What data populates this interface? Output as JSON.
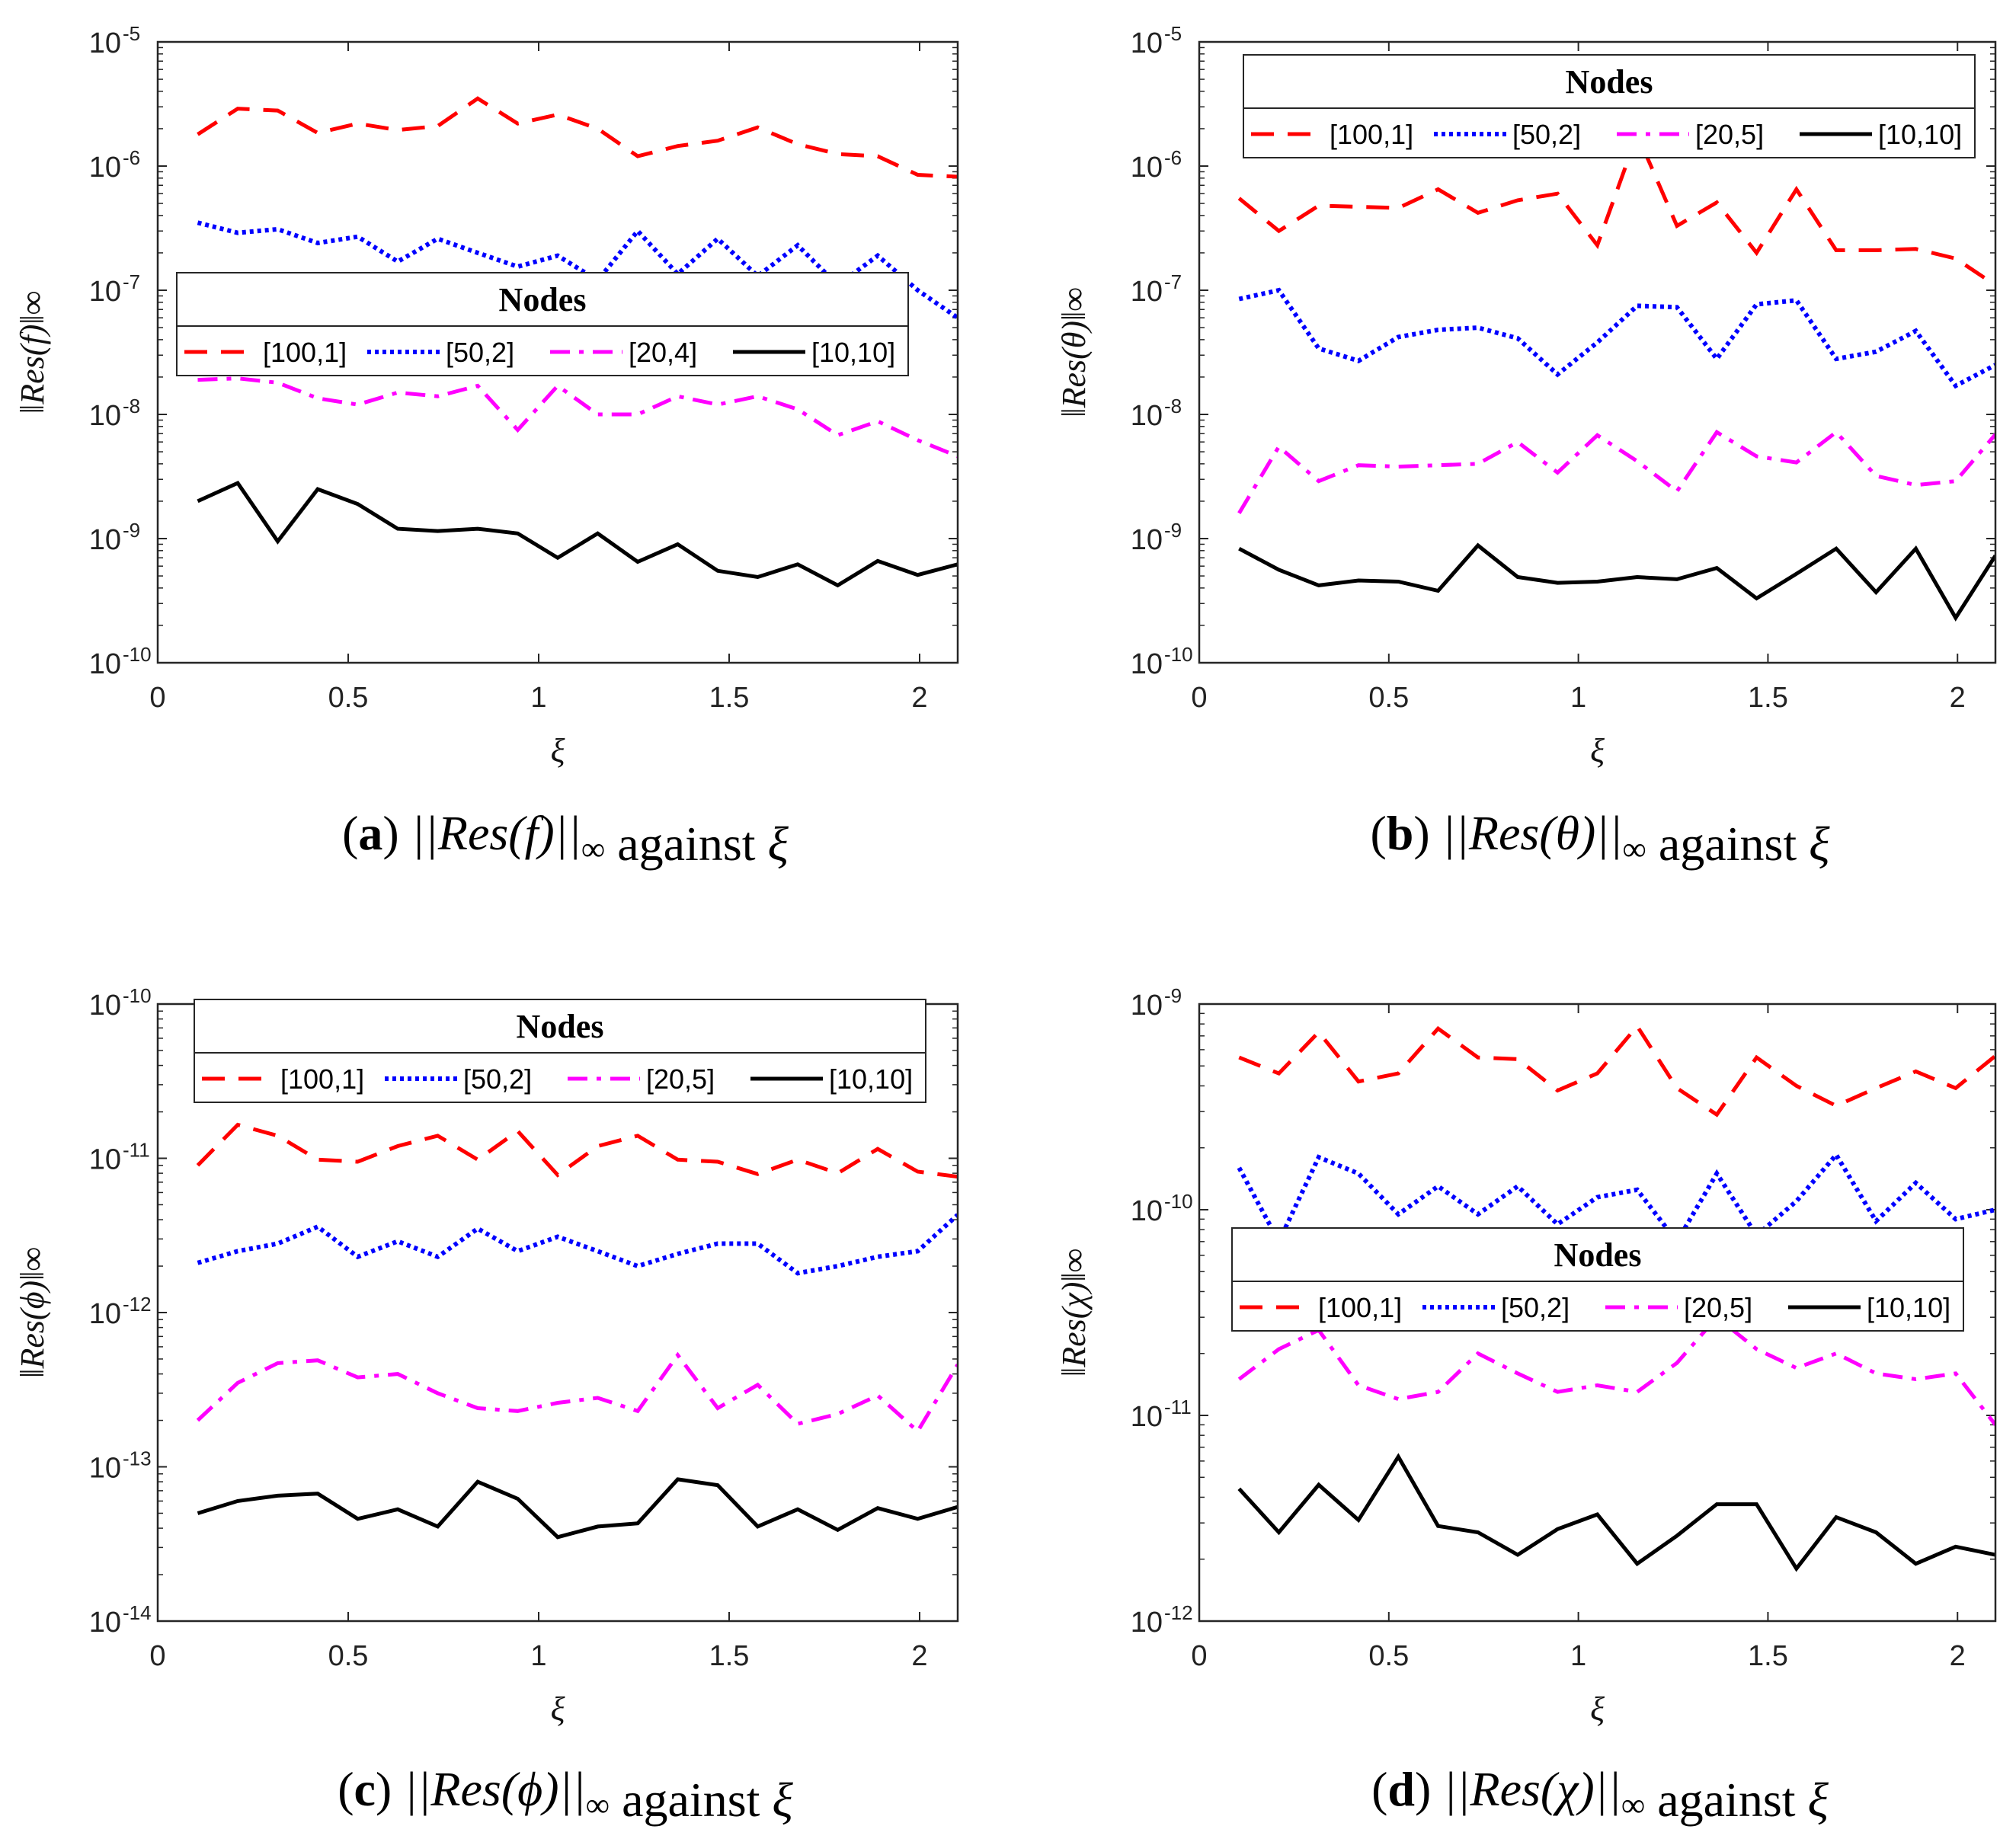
{
  "chart_data": [
    {
      "id": "a",
      "type": "line",
      "yscale": "log",
      "title": "",
      "xlabel": "ξ",
      "ylabel": "‖Res(f)‖∞",
      "xlim": [
        0,
        2.1
      ],
      "ylim_exp": [
        -10,
        -5
      ],
      "xticks": [
        "0",
        "0.5",
        "1",
        "1.5",
        "2"
      ],
      "ytick_base": "10",
      "ytick_exps": [
        "-10",
        "-9",
        "-8",
        "-7",
        "-6",
        "-5"
      ],
      "legend": {
        "title": "Nodes",
        "placement": "center-left"
      },
      "caption": {
        "letter": "a",
        "expr": "||Res(f)||",
        "sub": "∞",
        "rest": " against ",
        "var": "ξ"
      },
      "x": [
        0.105,
        0.21,
        0.315,
        0.42,
        0.525,
        0.63,
        0.735,
        0.84,
        0.945,
        1.05,
        1.155,
        1.26,
        1.365,
        1.47,
        1.575,
        1.68,
        1.785,
        1.89,
        1.995,
        2.1
      ],
      "series": [
        {
          "name": "[100,1]",
          "color": "#ff0000",
          "style": "dashed",
          "values": [
            1.8e-06,
            2.9e-06,
            2.8e-06,
            1.85e-06,
            2.2e-06,
            1.95e-06,
            2.1e-06,
            3.5e-06,
            2.2e-06,
            2.6e-06,
            2e-06,
            1.2e-06,
            1.45e-06,
            1.6e-06,
            2.05e-06,
            1.5e-06,
            1.25e-06,
            1.2e-06,
            8.5e-07,
            8.2e-07
          ]
        },
        {
          "name": "[50,2]",
          "color": "#0000ff",
          "style": "dotted",
          "values": [
            3.5e-07,
            2.9e-07,
            3.1e-07,
            2.4e-07,
            2.7e-07,
            1.7e-07,
            2.6e-07,
            2e-07,
            1.55e-07,
            1.9e-07,
            1.2e-07,
            3e-07,
            1.35e-07,
            2.6e-07,
            1.3e-07,
            2.3e-07,
            1.1e-07,
            1.9e-07,
            1e-07,
            6e-08
          ]
        },
        {
          "name": "[20,4]",
          "color": "#ff00ff",
          "style": "dashdot",
          "values": [
            1.9e-08,
            1.95e-08,
            1.8e-08,
            1.35e-08,
            1.2e-08,
            1.5e-08,
            1.4e-08,
            1.7e-08,
            7.5e-09,
            1.7e-08,
            1e-08,
            1e-08,
            1.4e-08,
            1.2e-08,
            1.4e-08,
            1.1e-08,
            6.8e-09,
            8.8e-09,
            6.2e-09,
            4.6e-09
          ]
        },
        {
          "name": "[10,10]",
          "color": "#000000",
          "style": "solid",
          "values": [
            2e-09,
            2.8e-09,
            9.5e-10,
            2.5e-09,
            1.9e-09,
            1.2e-09,
            1.15e-09,
            1.2e-09,
            1.1e-09,
            7e-10,
            1.1e-09,
            6.5e-10,
            9e-10,
            5.5e-10,
            4.9e-10,
            6.2e-10,
            4.2e-10,
            6.6e-10,
            5.1e-10,
            6.2e-10
          ]
        }
      ]
    },
    {
      "id": "b",
      "type": "line",
      "yscale": "log",
      "title": "",
      "xlabel": "ξ",
      "ylabel": "‖Res(θ)‖∞",
      "xlim": [
        0,
        2.1
      ],
      "ylim_exp": [
        -10,
        -5
      ],
      "xticks": [
        "0",
        "0.5",
        "1",
        "1.5",
        "2"
      ],
      "ytick_base": "10",
      "ytick_exps": [
        "-10",
        "-9",
        "-8",
        "-7",
        "-6",
        "-5"
      ],
      "legend": {
        "title": "Nodes",
        "placement": "top"
      },
      "caption": {
        "letter": "b",
        "expr": "||Res(θ)||",
        "sub": "∞",
        "rest": " against ",
        "var": "ξ"
      },
      "x": [
        0.105,
        0.21,
        0.315,
        0.42,
        0.525,
        0.63,
        0.735,
        0.84,
        0.945,
        1.05,
        1.155,
        1.26,
        1.365,
        1.47,
        1.575,
        1.68,
        1.785,
        1.89,
        1.995,
        2.1
      ],
      "series": [
        {
          "name": "[100,1]",
          "color": "#ff0000",
          "style": "dashed",
          "values": [
            5.5e-07,
            3e-07,
            4.8e-07,
            4.7e-07,
            4.6e-07,
            6.5e-07,
            4.2e-07,
            5.3e-07,
            6e-07,
            2.3e-07,
            1.8e-06,
            3.3e-07,
            5.1e-07,
            2e-07,
            6.5e-07,
            2.1e-07,
            2.1e-07,
            2.15e-07,
            1.8e-07,
            1.1e-07
          ]
        },
        {
          "name": "[50,2]",
          "color": "#0000ff",
          "style": "dotted",
          "values": [
            8.5e-08,
            1e-07,
            3.4e-08,
            2.7e-08,
            4.2e-08,
            4.8e-08,
            5e-08,
            4.1e-08,
            2.1e-08,
            3.8e-08,
            7.5e-08,
            7.3e-08,
            2.8e-08,
            7.7e-08,
            8.3e-08,
            2.8e-08,
            3.2e-08,
            4.7e-08,
            1.7e-08,
            2.5e-08
          ]
        },
        {
          "name": "[20,5]",
          "color": "#ff00ff",
          "style": "dashdot",
          "values": [
            1.6e-09,
            5.5e-09,
            2.9e-09,
            3.9e-09,
            3.8e-09,
            3.9e-09,
            4e-09,
            6e-09,
            3.4e-09,
            6.8e-09,
            4.2e-09,
            2.4e-09,
            7.2e-09,
            4.6e-09,
            4.1e-09,
            7.2e-09,
            3.2e-09,
            2.7e-09,
            2.9e-09,
            6.9e-09
          ]
        },
        {
          "name": "[10,10]",
          "color": "#000000",
          "style": "solid",
          "values": [
            8.3e-10,
            5.6e-10,
            4.2e-10,
            4.6e-10,
            4.5e-10,
            3.8e-10,
            8.8e-10,
            4.9e-10,
            4.4e-10,
            4.5e-10,
            4.9e-10,
            4.7e-10,
            5.8e-10,
            3.3e-10,
            5.2e-10,
            8.3e-10,
            3.7e-10,
            8.3e-10,
            2.3e-10,
            7.3e-10
          ]
        }
      ]
    },
    {
      "id": "c",
      "type": "line",
      "yscale": "log",
      "title": "",
      "xlabel": "ξ",
      "ylabel": "‖Res(ϕ)‖∞",
      "xlim": [
        0,
        2.1
      ],
      "ylim_exp": [
        -14,
        -10
      ],
      "xticks": [
        "0",
        "0.5",
        "1",
        "1.5",
        "2"
      ],
      "ytick_base": "10",
      "ytick_exps": [
        "-14",
        "-13",
        "-12",
        "-11",
        "-10"
      ],
      "legend": {
        "title": "Nodes",
        "placement": "top"
      },
      "caption": {
        "letter": "c",
        "expr": "||Res(ϕ)||",
        "sub": "∞",
        "rest": " against ",
        "var": "ξ"
      },
      "x": [
        0.105,
        0.21,
        0.315,
        0.42,
        0.525,
        0.63,
        0.735,
        0.84,
        0.945,
        1.05,
        1.155,
        1.26,
        1.365,
        1.47,
        1.575,
        1.68,
        1.785,
        1.89,
        1.995,
        2.1
      ],
      "series": [
        {
          "name": "[100,1]",
          "color": "#ff0000",
          "style": "dashed",
          "values": [
            9e-12,
            1.65e-11,
            1.4e-11,
            9.8e-12,
            9.5e-12,
            1.2e-11,
            1.4e-11,
            9.8e-12,
            1.5e-11,
            7.8e-12,
            1.2e-11,
            1.4e-11,
            9.8e-12,
            9.5e-12,
            7.9e-12,
            9.8e-12,
            8e-12,
            1.15e-11,
            8.2e-12,
            7.6e-12
          ]
        },
        {
          "name": "[50,2]",
          "color": "#0000ff",
          "style": "dotted",
          "values": [
            2.1e-12,
            2.5e-12,
            2.8e-12,
            3.6e-12,
            2.3e-12,
            2.9e-12,
            2.3e-12,
            3.5e-12,
            2.5e-12,
            3.1e-12,
            2.5e-12,
            2e-12,
            2.4e-12,
            2.8e-12,
            2.8e-12,
            1.8e-12,
            2e-12,
            2.3e-12,
            2.5e-12,
            4.3e-12
          ]
        },
        {
          "name": "[20,5]",
          "color": "#ff00ff",
          "style": "dashdot",
          "values": [
            2e-13,
            3.5e-13,
            4.7e-13,
            4.9e-13,
            3.8e-13,
            4e-13,
            3e-13,
            2.4e-13,
            2.3e-13,
            2.6e-13,
            2.8e-13,
            2.3e-13,
            5.3e-13,
            2.4e-13,
            3.4e-13,
            1.9e-13,
            2.2e-13,
            2.9e-13,
            1.7e-13,
            4.6e-13
          ]
        },
        {
          "name": "[10,10]",
          "color": "#000000",
          "style": "solid",
          "values": [
            5e-14,
            6e-14,
            6.5e-14,
            6.7e-14,
            4.6e-14,
            5.3e-14,
            4.1e-14,
            8e-14,
            6.2e-14,
            3.5e-14,
            4.1e-14,
            4.3e-14,
            8.3e-14,
            7.6e-14,
            4.1e-14,
            5.3e-14,
            3.9e-14,
            5.4e-14,
            4.6e-14,
            5.5e-14
          ]
        }
      ]
    },
    {
      "id": "d",
      "type": "line",
      "yscale": "log",
      "title": "",
      "xlabel": "ξ",
      "ylabel": "‖Res(χ)‖∞",
      "xlim": [
        0,
        2.1
      ],
      "ylim_exp": [
        -12,
        -9
      ],
      "xticks": [
        "0",
        "0.5",
        "1",
        "1.5",
        "2"
      ],
      "ytick_base": "10",
      "ytick_exps": [
        "-12",
        "-11",
        "-10",
        "-9"
      ],
      "legend": {
        "title": "Nodes",
        "placement": "center"
      },
      "caption": {
        "letter": "d",
        "expr": "||Res(χ)||",
        "sub": "∞",
        "rest": " against ",
        "var": "ξ"
      },
      "x": [
        0.105,
        0.21,
        0.315,
        0.42,
        0.525,
        0.63,
        0.735,
        0.84,
        0.945,
        1.05,
        1.155,
        1.26,
        1.365,
        1.47,
        1.575,
        1.68,
        1.785,
        1.89,
        1.995,
        2.1
      ],
      "series": [
        {
          "name": "[100,1]",
          "color": "#ff0000",
          "style": "dashed",
          "values": [
            5.5e-10,
            4.6e-10,
            7.3e-10,
            4.2e-10,
            4.6e-10,
            7.6e-10,
            5.5e-10,
            5.4e-10,
            3.8e-10,
            4.6e-10,
            7.8e-10,
            3.9e-10,
            2.9e-10,
            5.5e-10,
            4e-10,
            3.2e-10,
            3.9e-10,
            4.7e-10,
            3.9e-10,
            5.6e-10
          ]
        },
        {
          "name": "[50,2]",
          "color": "#0000ff",
          "style": "dotted",
          "values": [
            1.6e-10,
            7e-11,
            1.8e-10,
            1.5e-10,
            9.5e-11,
            1.3e-10,
            9.5e-11,
            1.3e-10,
            8.5e-11,
            1.15e-10,
            1.25e-10,
            7e-11,
            1.5e-10,
            7.5e-11,
            1.1e-10,
            1.85e-10,
            8.8e-11,
            1.35e-10,
            9e-11,
            1e-10
          ]
        },
        {
          "name": "[20,5]",
          "color": "#ff00ff",
          "style": "dashdot",
          "values": [
            1.5e-11,
            2.1e-11,
            2.6e-11,
            1.4e-11,
            1.2e-11,
            1.3e-11,
            2e-11,
            1.6e-11,
            1.3e-11,
            1.4e-11,
            1.3e-11,
            1.8e-11,
            3e-11,
            2.1e-11,
            1.7e-11,
            2e-11,
            1.6e-11,
            1.5e-11,
            1.6e-11,
            9e-12
          ]
        },
        {
          "name": "[10,10]",
          "color": "#000000",
          "style": "solid",
          "values": [
            4.4e-12,
            2.7e-12,
            4.6e-12,
            3.1e-12,
            6.3e-12,
            2.9e-12,
            2.7e-12,
            2.1e-12,
            2.8e-12,
            3.3e-12,
            1.9e-12,
            2.6e-12,
            3.7e-12,
            3.7e-12,
            1.8e-12,
            3.2e-12,
            2.7e-12,
            1.9e-12,
            2.3e-12,
            2.1e-12
          ]
        }
      ]
    }
  ]
}
